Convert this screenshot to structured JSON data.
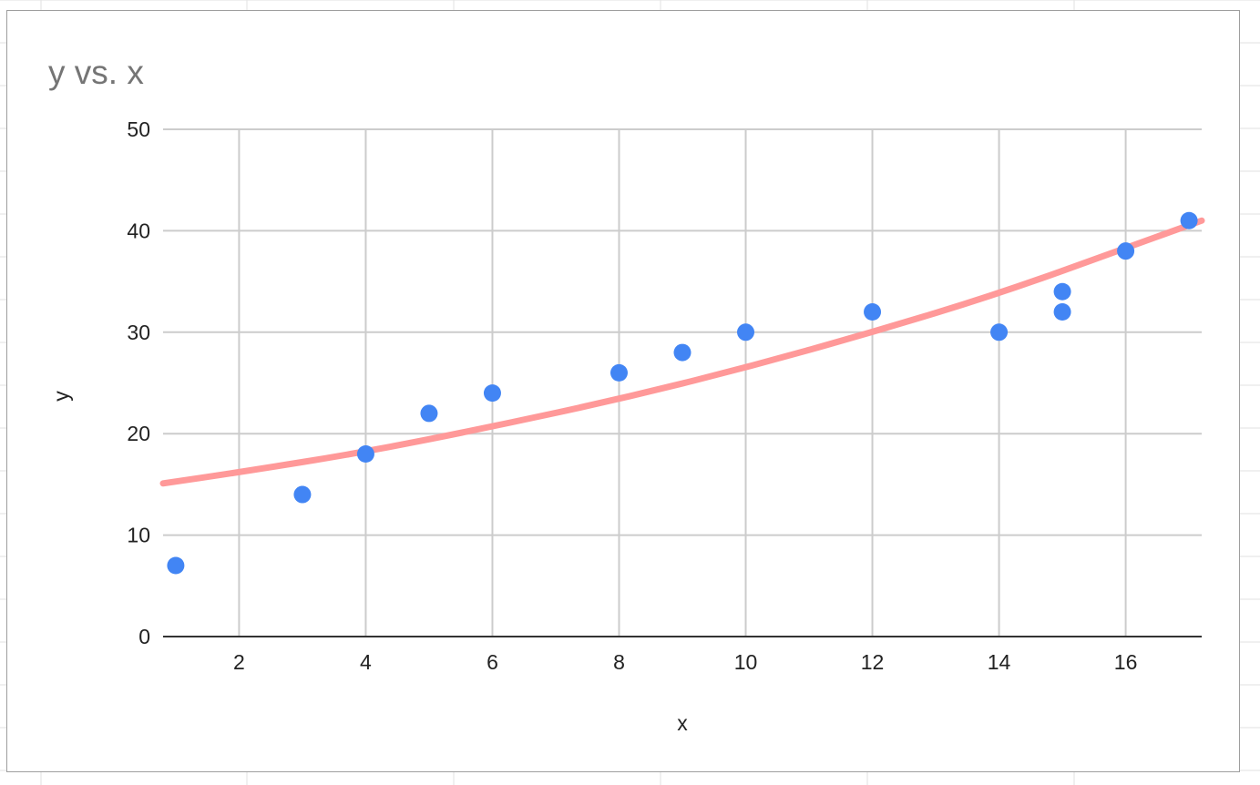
{
  "chart_data": {
    "type": "scatter",
    "title": "y vs. x",
    "xlabel": "x",
    "ylabel": "y",
    "xlim": [
      0.8,
      17.2
    ],
    "ylim": [
      0,
      50
    ],
    "x_ticks": [
      2,
      4,
      6,
      8,
      10,
      12,
      14,
      16
    ],
    "y_ticks": [
      0,
      10,
      20,
      30,
      40,
      50
    ],
    "grid": true,
    "legend": "none",
    "series": [
      {
        "points": [
          {
            "x": 1,
            "y": 7
          },
          {
            "x": 3,
            "y": 14
          },
          {
            "x": 4,
            "y": 18
          },
          {
            "x": 5,
            "y": 22
          },
          {
            "x": 6,
            "y": 24
          },
          {
            "x": 8,
            "y": 26
          },
          {
            "x": 9,
            "y": 28
          },
          {
            "x": 10,
            "y": 30
          },
          {
            "x": 12,
            "y": 32
          },
          {
            "x": 14,
            "y": 30
          },
          {
            "x": 15,
            "y": 34
          },
          {
            "x": 15,
            "y": 32
          },
          {
            "x": 16,
            "y": 38
          },
          {
            "x": 17,
            "y": 41
          }
        ]
      }
    ],
    "trendline": {
      "type": "exponential",
      "points": [
        {
          "x": 0.8,
          "y": 15.1
        },
        {
          "x": 2,
          "y": 16.2
        },
        {
          "x": 4,
          "y": 18.2
        },
        {
          "x": 6,
          "y": 20.7
        },
        {
          "x": 8,
          "y": 23.4
        },
        {
          "x": 10,
          "y": 26.5
        },
        {
          "x": 12,
          "y": 30.0
        },
        {
          "x": 14,
          "y": 33.8
        },
        {
          "x": 16,
          "y": 38.3
        },
        {
          "x": 17.2,
          "y": 41.0
        }
      ]
    },
    "colors": {
      "points": "#4285f4",
      "trendline": "#ff9999",
      "grid": "#cccccc",
      "axis": "#333333",
      "title": "#757575"
    }
  }
}
